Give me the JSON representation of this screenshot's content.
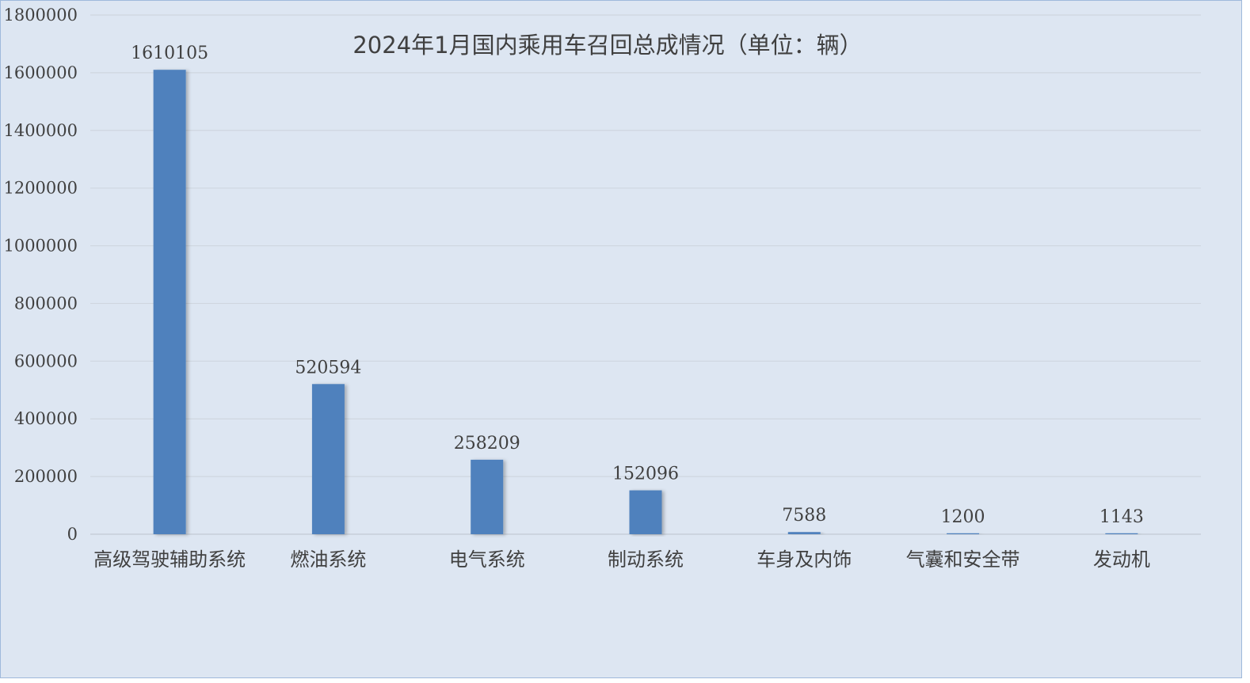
{
  "chart_data": {
    "type": "bar",
    "title": "2024年1月国内乘用车召回总成情况（单位：辆）",
    "xlabel": "",
    "ylabel": "",
    "categories": [
      "高级驾驶辅助系统",
      "燃油系统",
      "电气系统",
      "制动系统",
      "车身及内饰",
      "气囊和安全带",
      "发动机"
    ],
    "values": [
      1610105,
      520594,
      258209,
      152096,
      7588,
      1200,
      1143
    ],
    "ylim": [
      0,
      1800000
    ],
    "yticks": [
      "0",
      "200000",
      "400000",
      "600000",
      "800000",
      "1000000",
      "1200000",
      "1400000",
      "1600000",
      "1800000"
    ],
    "grid": true,
    "legend": "none",
    "bar_color": "#4f81bd"
  }
}
